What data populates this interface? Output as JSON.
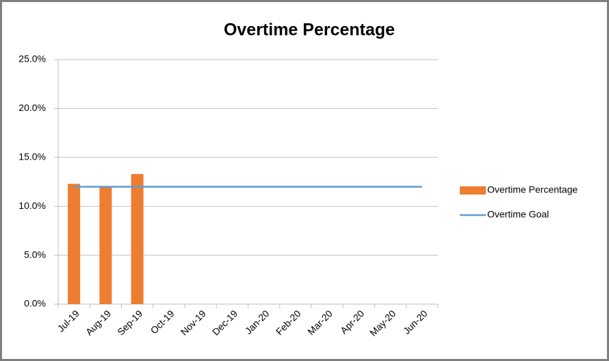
{
  "chart_data": {
    "type": "bar",
    "title": "Overtime Percentage",
    "categories": [
      "Jul-19",
      "Aug-19",
      "Sep-19",
      "Oct-19",
      "Nov-19",
      "Dec-19",
      "Jan-20",
      "Feb-20",
      "Mar-20",
      "Apr-20",
      "May-20",
      "Jun-20"
    ],
    "series": [
      {
        "name": "Overtime Percentage",
        "type": "bar",
        "color": "#ed7d31",
        "values": [
          12.3,
          12.0,
          13.3,
          null,
          null,
          null,
          null,
          null,
          null,
          null,
          null,
          null
        ]
      },
      {
        "name": "Overtime Goal",
        "type": "line",
        "color": "#5b9bd5",
        "values": [
          12,
          12,
          12,
          12,
          12,
          12,
          12,
          12,
          12,
          12,
          12,
          12
        ]
      }
    ],
    "ylim": [
      0,
      25
    ],
    "yticks": [
      {
        "value": 0,
        "label": "0.0%"
      },
      {
        "value": 5,
        "label": "5.0%"
      },
      {
        "value": 10,
        "label": "10.0%"
      },
      {
        "value": 15,
        "label": "15.0%"
      },
      {
        "value": 20,
        "label": "20.0%"
      },
      {
        "value": 25,
        "label": "25.0%"
      }
    ],
    "grid": true,
    "legend": "right"
  }
}
